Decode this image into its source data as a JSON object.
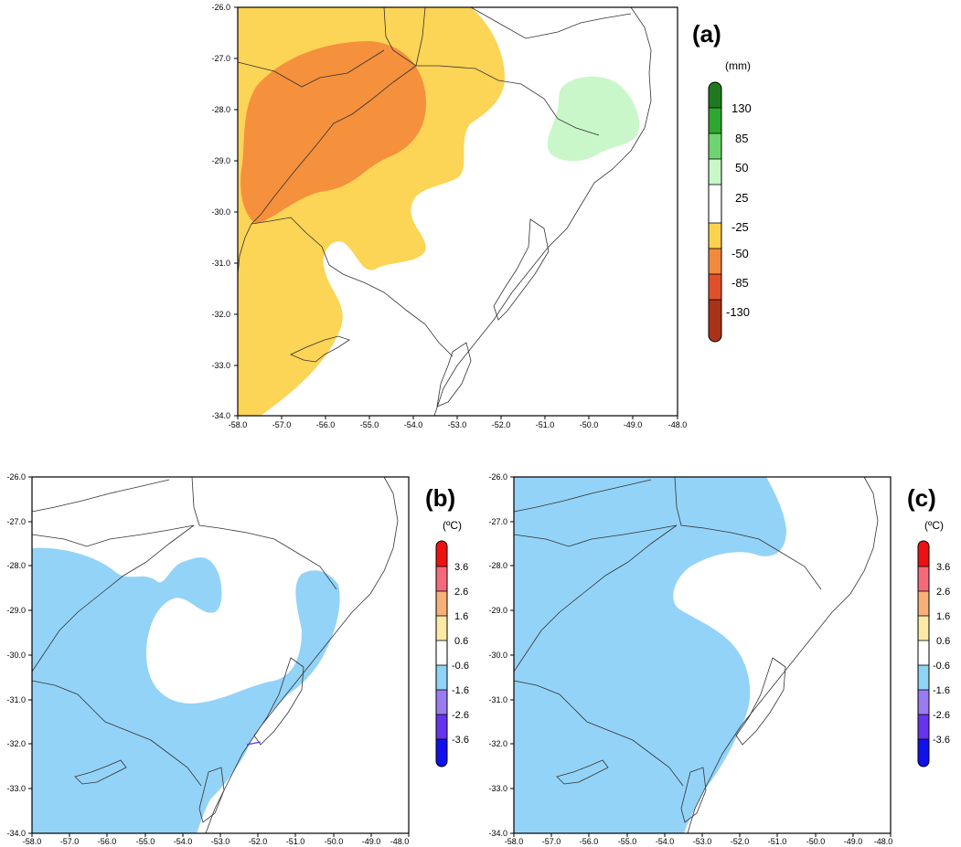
{
  "panels": [
    {
      "id": "a",
      "label": "(a)",
      "unit": "(mm)",
      "x_ticks": [
        "-58.0",
        "-57.0",
        "-56.0",
        "-55.0",
        "-54.0",
        "-53.0",
        "-52.0",
        "-51.0",
        "-50.0",
        "-49.0",
        "-48.0"
      ],
      "y_ticks": [
        "-26.0",
        "-27.0",
        "-28.0",
        "-29.0",
        "-30.0",
        "-31.0",
        "-32.0",
        "-33.0",
        "-34.0"
      ],
      "colorbar": {
        "labels": [
          "130",
          "85",
          "50",
          "25",
          "-25",
          "-50",
          "-85",
          "-130"
        ],
        "colors": [
          "#1f7a1f",
          "#2ea82e",
          "#6fd46f",
          "#c8f7c8",
          "#ffffff",
          "#fcd34d",
          "#f28a3c",
          "#e0502a",
          "#a8321a"
        ],
        "shade_colors": {
          "dry_light": "#fcd456",
          "dry_mid": "#f5903c",
          "wet_light": "#c9f7c9"
        }
      }
    },
    {
      "id": "b",
      "label": "(b)",
      "unit": "(ºC)",
      "x_ticks": [
        "-58.0",
        "-57.0",
        "-56.0",
        "-55.0",
        "-54.0",
        "-53.0",
        "-52.0",
        "-51.0",
        "-50.0",
        "-49.0",
        "-48.0"
      ],
      "y_ticks": [
        "-26.0",
        "-27.0",
        "-28.0",
        "-29.0",
        "-30.0",
        "-31.0",
        "-32.0",
        "-33.0",
        "-34.0"
      ],
      "colorbar": {
        "labels": [
          "3.6",
          "2.6",
          "1.6",
          "0.6",
          "-0.6",
          "-1.6",
          "-2.6",
          "-3.6"
        ],
        "colors": [
          "#ee1111",
          "#f56a7a",
          "#f8b078",
          "#fde9a6",
          "#ffffff",
          "#8fd3f5",
          "#9a7cf0",
          "#6633ee",
          "#1111ee"
        ],
        "shade_colors": {
          "cool_light": "#93d3f7"
        }
      }
    },
    {
      "id": "c",
      "label": "(c)",
      "unit": "(ºC)",
      "x_ticks": [
        "-58.0",
        "-57.0",
        "-56.0",
        "-55.0",
        "-54.0",
        "-53.0",
        "-52.0",
        "-51.0",
        "-50.0",
        "-49.0",
        "-48.0"
      ],
      "y_ticks": [
        "-26.0",
        "-27.0",
        "-28.0",
        "-29.0",
        "-30.0",
        "-31.0",
        "-32.0",
        "-33.0",
        "-34.0"
      ],
      "colorbar": {
        "labels": [
          "3.6",
          "2.6",
          "1.6",
          "0.6",
          "-0.6",
          "-1.6",
          "-2.6",
          "-3.6"
        ],
        "colors": [
          "#ee1111",
          "#f56a7a",
          "#f8b078",
          "#fde9a6",
          "#ffffff",
          "#8fd3f5",
          "#9a7cf0",
          "#6633ee",
          "#1111ee"
        ],
        "shade_colors": {
          "cool_light": "#93d3f7"
        }
      }
    }
  ]
}
